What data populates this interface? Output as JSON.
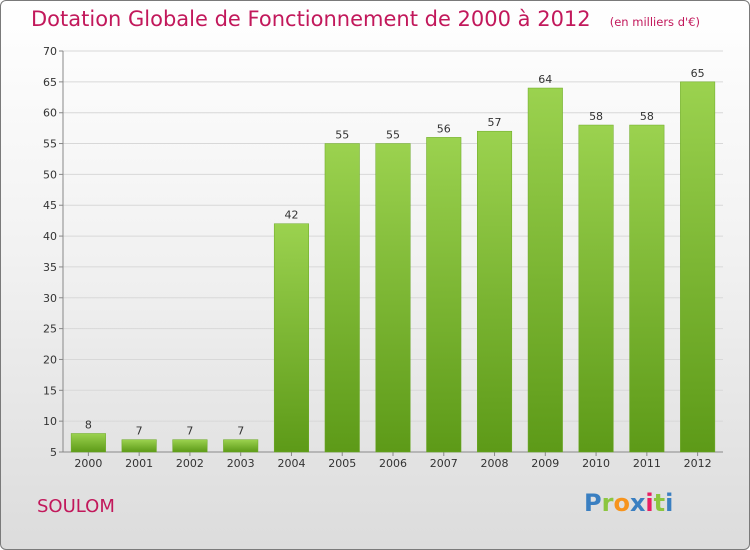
{
  "title": "Dotation Globale de Fonctionnement de 2000 à 2012",
  "subtitle": "(en milliers d'€)",
  "commune": "SOULOM",
  "logo": {
    "letters": [
      "P",
      "r",
      "o",
      "x",
      "i",
      "t",
      "i"
    ],
    "colors": [
      "#3a7fc1",
      "#8cc63f",
      "#f7941d",
      "#3a7fc1",
      "#e91e63",
      "#8cc63f",
      "#3a7fc1"
    ]
  },
  "colors": {
    "bar_top": "#9bd24f",
    "bar_bottom": "#5d9a18",
    "title": "#c2185b"
  },
  "chart_data": {
    "type": "bar",
    "title": "Dotation Globale de Fonctionnement de 2000 à 2012",
    "subtitle": "(en milliers d'€)",
    "categories": [
      "2000",
      "2001",
      "2002",
      "2003",
      "2004",
      "2005",
      "2006",
      "2007",
      "2008",
      "2009",
      "2010",
      "2011",
      "2012"
    ],
    "values": [
      8,
      7,
      7,
      7,
      42,
      55,
      55,
      56,
      57,
      64,
      58,
      58,
      65
    ],
    "ylim": [
      5,
      70
    ],
    "yticks": [
      5,
      10,
      15,
      20,
      25,
      30,
      35,
      40,
      45,
      50,
      55,
      60,
      65,
      70
    ],
    "grid": true,
    "xlabel": "",
    "ylabel": ""
  }
}
